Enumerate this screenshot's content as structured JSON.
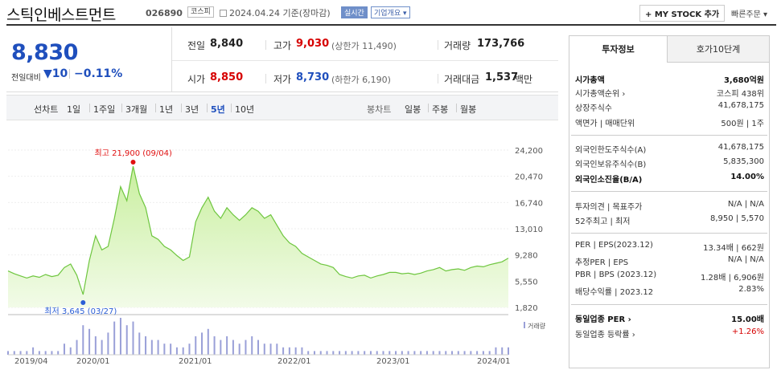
{
  "header": {
    "title": "스틱인베스트먼트",
    "code": "026890",
    "market_badge": "코스피",
    "date_text": "2024.04.24 기준(장마감)",
    "realtime": "실시간",
    "corp_info": "기업개요 ▾",
    "my_stock": "+ MY STOCK 추가",
    "quick_order": "빠른주문 ▾"
  },
  "price": {
    "current": "8,830",
    "diff_label": "전일대비",
    "diff_value": "▼10",
    "diff_pct": "−0.11%"
  },
  "stats": {
    "prev_label": "전일",
    "prev": "8,840",
    "high_label": "고가",
    "high": "9,030",
    "upper_limit": "(상한가 11,490)",
    "volume_label": "거래량",
    "volume": "173,766",
    "open_label": "시가",
    "open": "8,850",
    "low_label": "저가",
    "low": "8,730",
    "lower_limit": "(하한가 6,190)",
    "amount_label": "거래대금",
    "amount": "1,537",
    "amount_unit": "백만"
  },
  "periods": {
    "line_label": "선차트",
    "items": [
      "1일",
      "1주일",
      "3개월",
      "1년",
      "3년",
      "5년",
      "10년"
    ],
    "active": "5년",
    "candle_label": "봉차트",
    "candle_items": [
      "일봉",
      "주봉",
      "월봉"
    ]
  },
  "chart_data": {
    "type": "area",
    "y_ticks": [
      "24,200",
      "20,470",
      "16,740",
      "13,010",
      "9,280",
      "5,550",
      "1,820"
    ],
    "x_ticks": [
      "2019/04",
      "2020/01",
      "2021/01",
      "2022/01",
      "2023/01",
      "2024/01"
    ],
    "high_label": "최고 21,900 (09/04)",
    "low_label": "최저 3,645 (03/27)",
    "volume_label": "거래량",
    "prices": [
      7000,
      6600,
      6300,
      6000,
      6300,
      6100,
      6500,
      6200,
      6400,
      7500,
      8000,
      6400,
      3645,
      8500,
      12000,
      10000,
      10500,
      14500,
      19000,
      17000,
      21900,
      18000,
      16000,
      12000,
      11500,
      10500,
      10000,
      9200,
      8500,
      9000,
      14000,
      16000,
      17500,
      15500,
      14500,
      16000,
      15000,
      14200,
      15000,
      16000,
      15500,
      14500,
      15000,
      13500,
      12000,
      11000,
      10500,
      9500,
      9000,
      8500,
      8000,
      7800,
      7500,
      6500,
      6200,
      6000,
      6300,
      6400,
      6000,
      6300,
      6500,
      6800,
      6800,
      6600,
      6700,
      6500,
      6700,
      7000,
      7200,
      7500,
      7000,
      7200,
      7300,
      7100,
      7500,
      7700,
      7600,
      7900,
      8100,
      8300,
      8830
    ],
    "volumes": [
      1,
      1,
      1,
      1,
      2,
      1,
      1,
      1,
      1,
      3,
      2,
      4,
      8,
      7,
      5,
      4,
      6,
      9,
      10,
      8,
      9,
      6,
      5,
      4,
      4,
      3,
      3,
      2,
      2,
      3,
      5,
      6,
      7,
      5,
      4,
      5,
      4,
      3,
      4,
      5,
      4,
      3,
      3,
      3,
      2,
      2,
      2,
      2,
      1,
      1,
      1,
      1,
      1,
      1,
      1,
      1,
      1,
      1,
      1,
      1,
      1,
      1,
      1,
      1,
      1,
      1,
      1,
      1,
      1,
      1,
      1,
      1,
      1,
      1,
      1,
      1,
      1,
      1,
      2,
      2,
      2
    ],
    "colors": {
      "line": "#6ec63f",
      "fill_top": "#c9ef9f",
      "fill_bottom": "#f2fbe8",
      "volume": "#9aa0d8",
      "high_dot": "#e01010",
      "low_dot": "#2a5ed6"
    }
  },
  "side": {
    "tab_info": "투자정보",
    "tab_order": "호가10단계",
    "rows": [
      {
        "label": "시가총액",
        "value": "3,680억원",
        "bold": true
      },
      {
        "label": "시가총액순위 ›",
        "value": "코스피 438위"
      },
      {
        "label": "상장주식수",
        "value": "41,678,175"
      },
      {
        "label": "액면가 | 매매단위",
        "value": "500원 | 1주"
      },
      {
        "label": "외국인한도주식수(A)",
        "value": "41,678,175"
      },
      {
        "label": "외국인보유주식수(B)",
        "value": "5,835,300"
      },
      {
        "label": "외국인소진율(B/A)",
        "value": "14.00%",
        "bold": true
      },
      {
        "label": "투자의견 | 목표주가",
        "value": "N/A | N/A"
      },
      {
        "label": "52주최고 | 최저",
        "value": "8,950 | 5,570"
      },
      {
        "label": "PER | EPS(2023.12)",
        "value": "13.34배 | 662원"
      },
      {
        "label": "추정PER | EPS",
        "value": "N/A | N/A"
      },
      {
        "label": "PBR | BPS (2023.12)",
        "value": "1.28배 | 6,906원"
      },
      {
        "label": "배당수익률 | 2023.12",
        "value": "2.83%"
      },
      {
        "label": "동일업종 PER ›",
        "value": "15.00배",
        "bold": true
      },
      {
        "label": "동일업종 등락률 ›",
        "value": "+1.26%",
        "red": true
      }
    ]
  }
}
